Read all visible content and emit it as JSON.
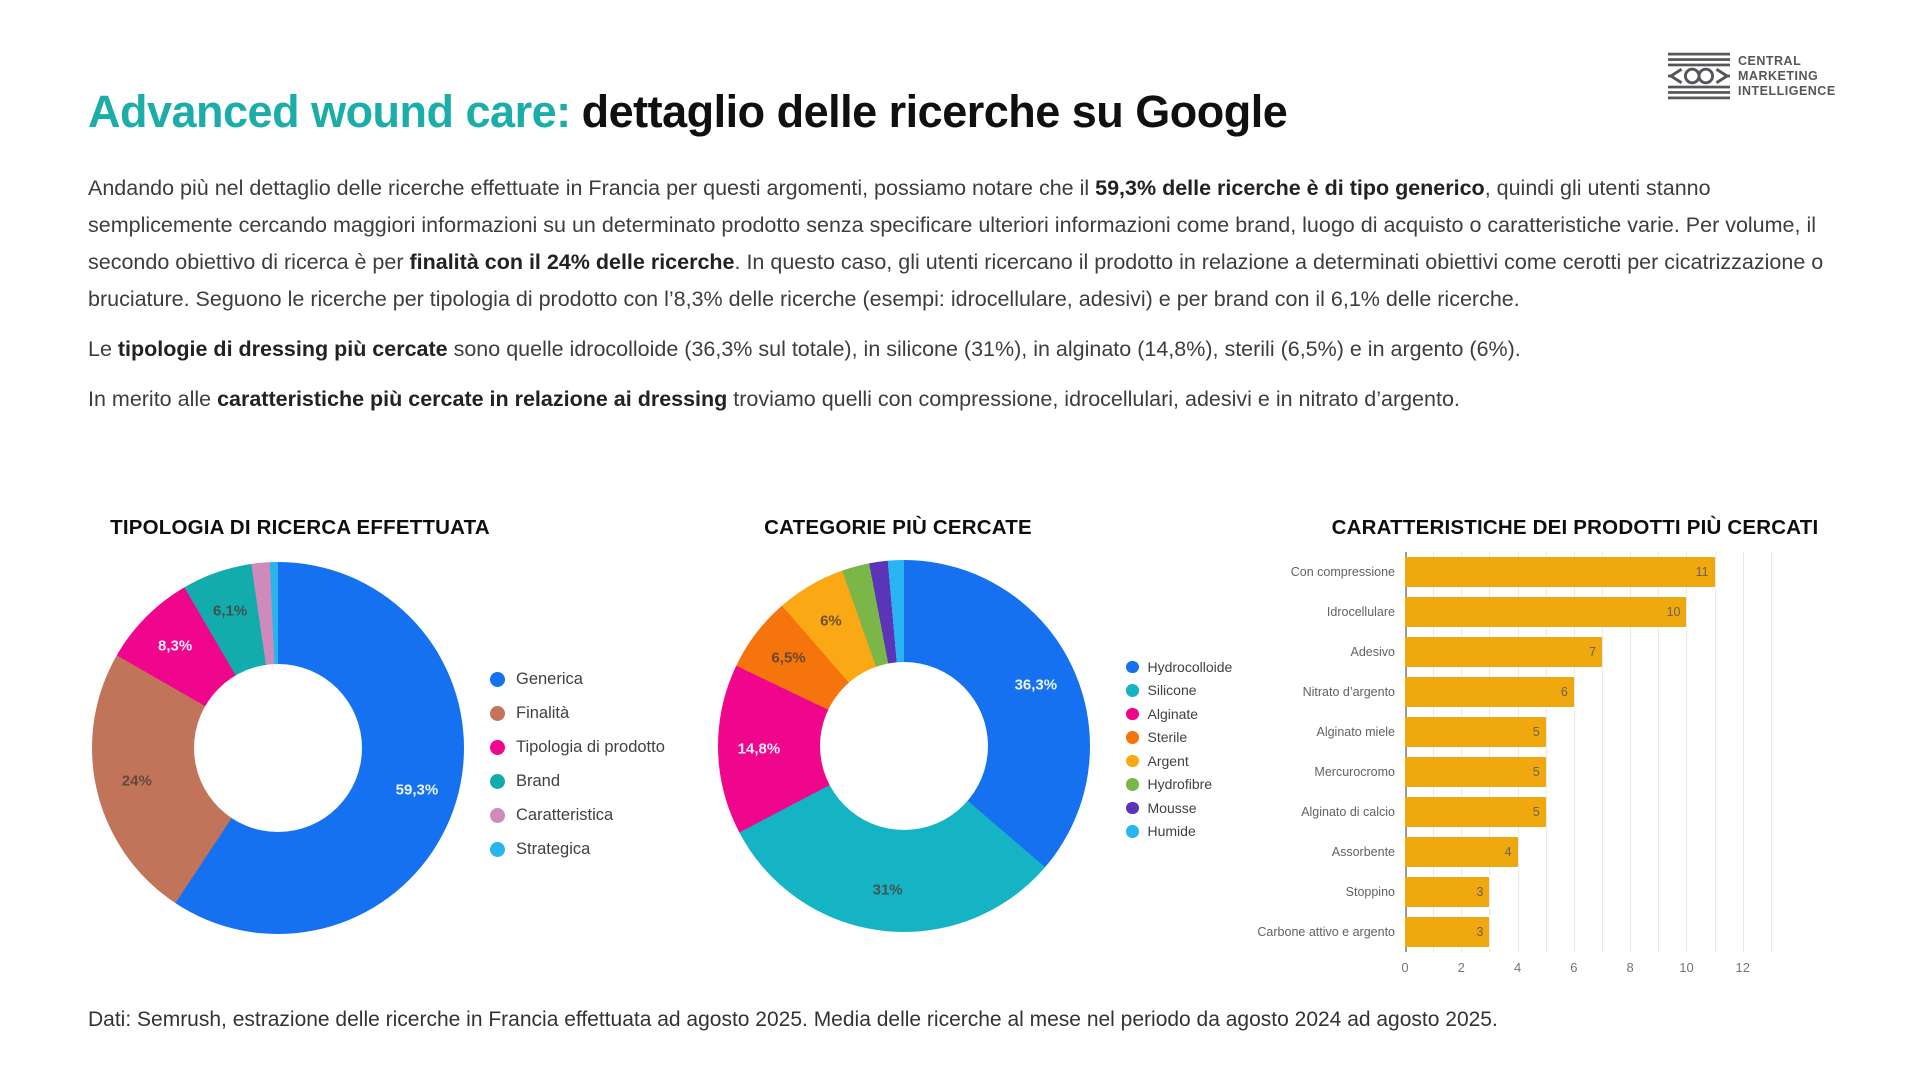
{
  "logo": {
    "line1": "CENTRAL",
    "line2": "MARKETING",
    "line3": "INTELLIGENCE"
  },
  "title": {
    "highlight": "Advanced wound care:",
    "rest": "dettaglio delle ricerche su Google"
  },
  "paragraphs": [
    {
      "segments": [
        {
          "text": "Andando più nel dettaglio delle ricerche effettuate in Francia per questi argomenti, possiamo notare che il ",
          "bold": false
        },
        {
          "text": "59,3% delle ricerche è di tipo generico",
          "bold": true
        },
        {
          "text": ", quindi gli utenti stanno semplicemente cercando maggiori informazioni su un determinato prodotto senza specificare ulteriori informazioni come brand, luogo di acquisto o caratteristiche varie. Per volume, il secondo obiettivo di ricerca è per ",
          "bold": false
        },
        {
          "text": "finalità con il 24% delle ricerche",
          "bold": true
        },
        {
          "text": ". In questo caso, gli utenti ricercano il prodotto in relazione a determinati obiettivi come cerotti per cicatrizzazione o bruciature. Seguono le ricerche per tipologia di prodotto con l’8,3% delle ricerche (esempi: idrocellulare, adesivi) e per brand con il 6,1% delle ricerche.",
          "bold": false
        }
      ]
    },
    {
      "segments": [
        {
          "text": "Le ",
          "bold": false
        },
        {
          "text": "tipologie di dressing più cercate",
          "bold": true
        },
        {
          "text": " sono quelle idrocolloide (36,3% sul totale), in silicone (31%), in alginato (14,8%), sterili (6,5%) e in argento (6%).",
          "bold": false
        }
      ]
    },
    {
      "segments": [
        {
          "text": "In merito alle ",
          "bold": false
        },
        {
          "text": "caratteristiche più cercate in relazione ai dressing",
          "bold": true
        },
        {
          "text": " troviamo quelli con compressione, idrocellulari, adesivi e in nitrato d’argento.",
          "bold": false
        }
      ]
    }
  ],
  "chart_data": [
    {
      "type": "donut",
      "title": "TIPOLOGIA DI RICERCA EFFETTUATA",
      "unit": "% of searches",
      "legend_position": "right",
      "slices": [
        {
          "name": "Generica",
          "value": 59.3,
          "label": "59,3%",
          "color": "#1571F0",
          "label_tone": "light"
        },
        {
          "name": "Finalità",
          "value": 24,
          "label": "24%",
          "color": "#C1745A",
          "label_tone": "dark"
        },
        {
          "name": "Tipologia di prodotto",
          "value": 8.3,
          "label": "8,3%",
          "color": "#F0058D",
          "label_tone": "light"
        },
        {
          "name": "Brand",
          "value": 6.1,
          "label": "6,1%",
          "color": "#13ACAD",
          "label_tone": "dark"
        },
        {
          "name": "Caratteristica",
          "value": 1.6,
          "label": "",
          "color": "#CE8ABB",
          "label_tone": "dark"
        },
        {
          "name": "Strategica",
          "value": 0.7,
          "label": "",
          "color": "#2BB4EC",
          "label_tone": "dark"
        }
      ]
    },
    {
      "type": "donut",
      "title": "CATEGORIE PIÙ CERCATE",
      "unit": "% of searches",
      "legend_position": "right",
      "slices": [
        {
          "name": "Hydrocolloide",
          "value": 36.3,
          "label": "36,3%",
          "color": "#1571F0",
          "label_tone": "light"
        },
        {
          "name": "Silicone",
          "value": 31,
          "label": "31%",
          "color": "#15B4C5",
          "label_tone": "dark"
        },
        {
          "name": "Alginate",
          "value": 14.8,
          "label": "14,8%",
          "color": "#F0058D",
          "label_tone": "light"
        },
        {
          "name": "Sterile",
          "value": 6.5,
          "label": "6,5%",
          "color": "#F5740B",
          "label_tone": "dark"
        },
        {
          "name": "Argent",
          "value": 6,
          "label": "6%",
          "color": "#FBA815",
          "label_tone": "dark"
        },
        {
          "name": "Hydrofibre",
          "value": 2.4,
          "label": "",
          "color": "#7AB648",
          "label_tone": "dark"
        },
        {
          "name": "Mousse",
          "value": 1.6,
          "label": "",
          "color": "#5B34B8",
          "label_tone": "dark"
        },
        {
          "name": "Humide",
          "value": 1.4,
          "label": "",
          "color": "#29B5F2",
          "label_tone": "dark"
        }
      ]
    },
    {
      "type": "bar",
      "title": "CARATTERISTICHE DEI PRODOTTI PIÙ CERCATI",
      "orientation": "horizontal",
      "bar_color": "#EFA80E",
      "categories": [
        "Con compressione",
        "Idrocellulare",
        "Adesivo",
        "Nitrato d’argento",
        "Alginato miele",
        "Mercurocromo",
        "Alginato di calcio",
        "Assorbente",
        "Stoppino",
        "Carbone attivo e argento"
      ],
      "values": [
        11,
        10,
        7,
        6,
        5,
        5,
        5,
        4,
        3,
        3
      ],
      "xlim": [
        0,
        13.5
      ],
      "ticks": [
        0,
        2,
        4,
        6,
        8,
        10,
        12
      ],
      "grid": true
    }
  ],
  "footer": {
    "note": "Dati: Semrush, estrazione delle ricerche in Francia effettuata ad agosto 2025. Media delle ricerche al mese nel periodo da agosto 2024 ad agosto 2025."
  },
  "colors": {
    "accent_teal": "#1BAEA8",
    "text_dark": "#3c3c3c"
  }
}
